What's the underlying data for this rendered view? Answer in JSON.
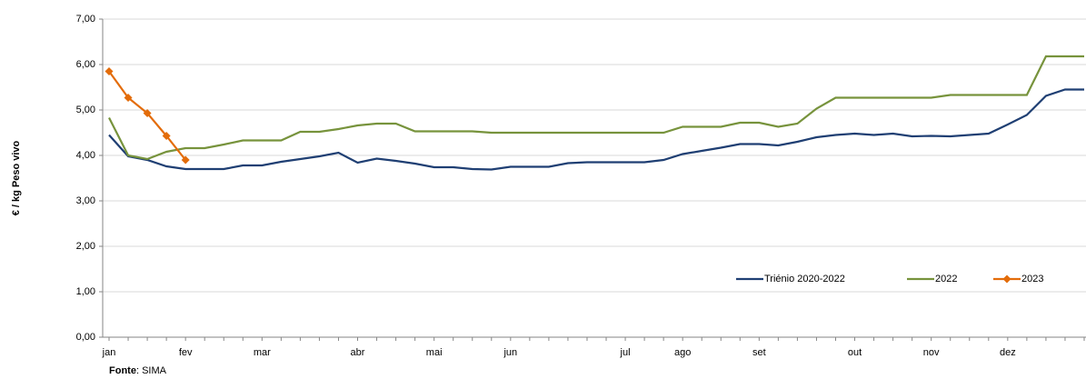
{
  "chart_data": {
    "type": "line",
    "ylabel": "€ / kg Peso vivo",
    "source": {
      "label": "Fonte",
      "text": ": SIMA"
    },
    "categories": [
      "jan",
      null,
      null,
      null,
      "fev",
      null,
      null,
      null,
      "mar",
      null,
      null,
      null,
      null,
      "abr",
      null,
      null,
      null,
      "mai",
      null,
      null,
      null,
      "jun",
      null,
      null,
      null,
      null,
      null,
      "jul",
      null,
      null,
      "ago",
      null,
      null,
      null,
      "set",
      null,
      null,
      null,
      null,
      "out",
      null,
      null,
      null,
      "nov",
      null,
      null,
      null,
      "dez",
      null,
      null,
      null,
      null
    ],
    "series": [
      {
        "name": "Triénio 2020-2022",
        "color": "#1f3f73",
        "marker": false,
        "values": [
          4.45,
          3.98,
          3.9,
          3.76,
          3.7,
          3.7,
          3.7,
          3.78,
          3.78,
          3.86,
          3.92,
          3.98,
          4.06,
          3.84,
          3.93,
          3.88,
          3.82,
          3.74,
          3.74,
          3.7,
          3.69,
          3.75,
          3.75,
          3.75,
          3.83,
          3.85,
          3.85,
          3.85,
          3.85,
          3.9,
          4.03,
          4.1,
          4.17,
          4.25,
          4.25,
          4.22,
          4.3,
          4.4,
          4.45,
          4.48,
          4.45,
          4.48,
          4.42,
          4.43,
          4.42,
          4.45,
          4.48,
          4.68,
          4.89,
          5.31,
          5.45,
          5.45
        ]
      },
      {
        "name": "2022",
        "color": "#77933c",
        "marker": false,
        "values": [
          4.83,
          4.0,
          3.92,
          4.08,
          4.16,
          4.16,
          4.24,
          4.33,
          4.33,
          4.33,
          4.52,
          4.52,
          4.58,
          4.66,
          4.7,
          4.7,
          4.53,
          4.53,
          4.53,
          4.53,
          4.5,
          4.5,
          4.5,
          4.5,
          4.5,
          4.5,
          4.5,
          4.5,
          4.5,
          4.5,
          4.63,
          4.63,
          4.63,
          4.72,
          4.72,
          4.63,
          4.7,
          5.03,
          5.27,
          5.27,
          5.27,
          5.27,
          5.27,
          5.27,
          5.33,
          5.33,
          5.33,
          5.33,
          5.33,
          6.18,
          6.18,
          6.18
        ]
      },
      {
        "name": "2023",
        "color": "#e36c0a",
        "marker": true,
        "values": [
          5.85,
          5.27,
          4.93,
          4.43,
          3.9,
          null,
          null,
          null,
          null,
          null,
          null,
          null,
          null,
          null,
          null,
          null,
          null,
          null,
          null,
          null,
          null,
          null,
          null,
          null,
          null,
          null,
          null,
          null,
          null,
          null,
          null,
          null,
          null,
          null,
          null,
          null,
          null,
          null,
          null,
          null,
          null,
          null,
          null,
          null,
          null,
          null,
          null,
          null,
          null,
          null,
          null,
          null
        ]
      }
    ],
    "ylim": [
      0,
      7
    ],
    "yticks": [
      {
        "value": 0,
        "label": "0,00"
      },
      {
        "value": 1,
        "label": "1,00"
      },
      {
        "value": 2,
        "label": "2,00"
      },
      {
        "value": 3,
        "label": "3,00"
      },
      {
        "value": 4,
        "label": "4,00"
      },
      {
        "value": 5,
        "label": "5,00"
      },
      {
        "value": 6,
        "label": "6,00"
      },
      {
        "value": 7,
        "label": "7,00"
      }
    ],
    "grid": true,
    "legend": "lower right"
  }
}
